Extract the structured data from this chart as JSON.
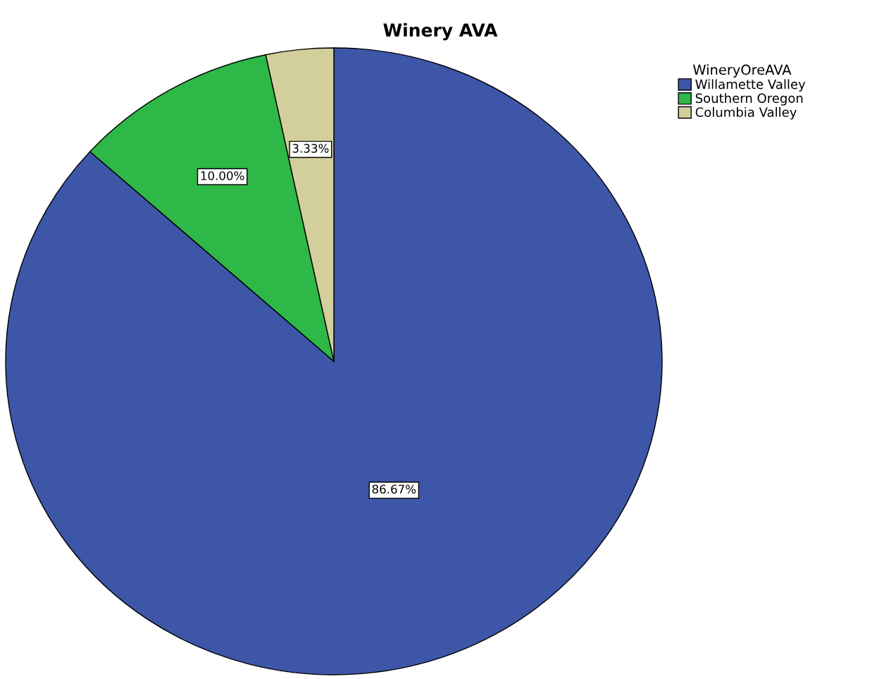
{
  "chart_data": {
    "type": "pie",
    "title": "Winery AVA",
    "legend_title": "WineryOreAVA",
    "categories": [
      "Willamette Valley",
      "Southern Oregon",
      "Columbia Valley"
    ],
    "values": [
      86.67,
      10.0,
      3.33
    ],
    "colors": [
      "#3d56a8",
      "#2eb847",
      "#d3cf9c"
    ],
    "value_labels": [
      "86.67%",
      "10.00%",
      "3.33%"
    ],
    "legend": "top right"
  }
}
